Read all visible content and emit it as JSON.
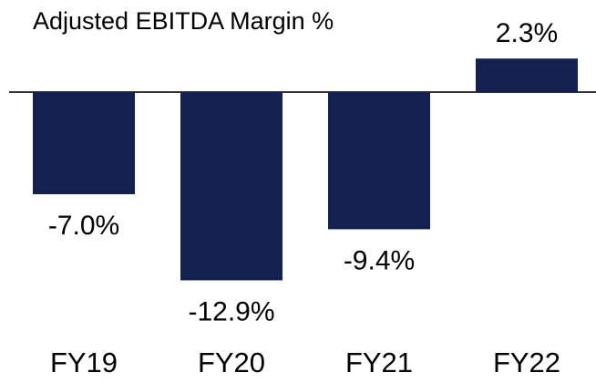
{
  "chart_data": {
    "type": "bar",
    "title": "Adjusted EBITDA Margin %",
    "categories": [
      "FY19",
      "FY20",
      "FY21",
      "FY22"
    ],
    "values": [
      -7.0,
      -12.9,
      -9.4,
      2.3
    ],
    "value_labels": [
      "-7.0%",
      "-12.9%",
      "-9.4%",
      "2.3%"
    ],
    "color": "#12214f"
  }
}
